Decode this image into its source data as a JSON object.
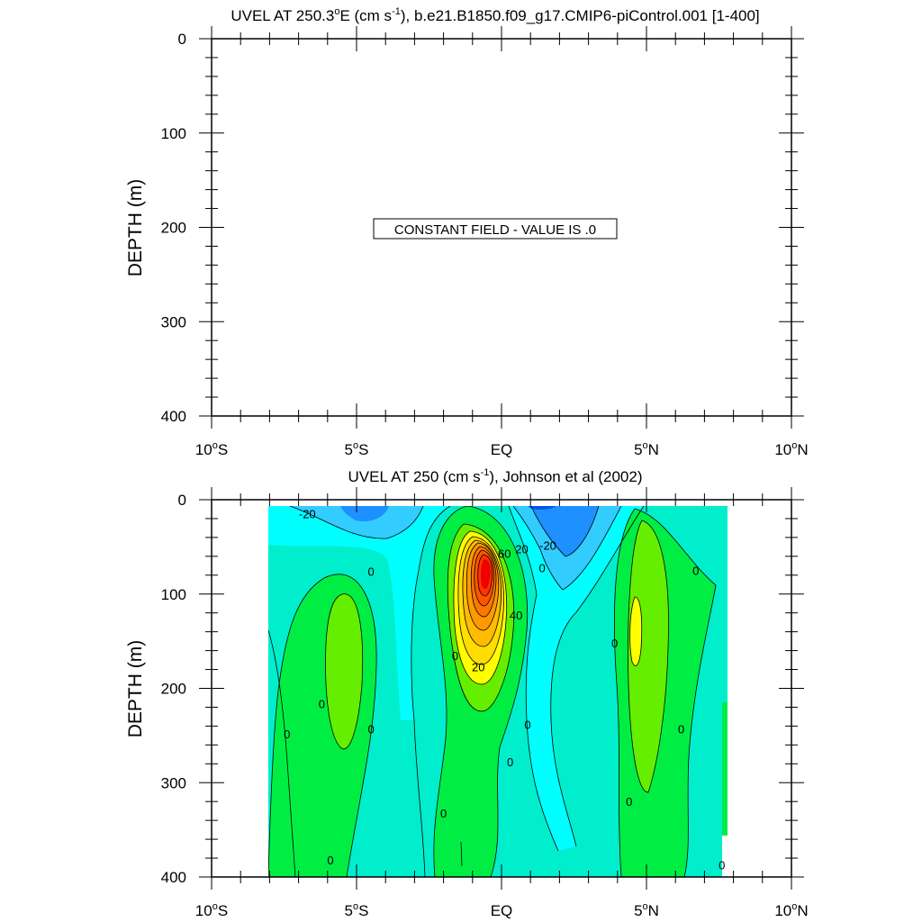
{
  "chart_data": [
    {
      "type": "contour",
      "title_main": "UVEL AT 250.3",
      "title_deg": "o",
      "title_unit_open": "E (cm s",
      "title_exp": "-1",
      "title_rest": "), b.e21.B1850.f09_g17.CMIP6-piControl.001 [1-400]",
      "ylabel": "DEPTH (m)",
      "xlim": [
        -10,
        10
      ],
      "ylim": [
        400,
        0
      ],
      "y_ticks": [
        "0",
        "100",
        "200",
        "300",
        "400"
      ],
      "x_ticks": [
        {
          "num": "10",
          "deg": "o",
          "hem": "S"
        },
        {
          "num": "5",
          "deg": "o",
          "hem": "S"
        },
        {
          "num": "EQ",
          "deg": "",
          "hem": ""
        },
        {
          "num": "5",
          "deg": "o",
          "hem": "N"
        },
        {
          "num": "10",
          "deg": "o",
          "hem": "N"
        }
      ],
      "notice": "CONSTANT FIELD - VALUE IS .0",
      "field_value": 0
    },
    {
      "type": "contour",
      "title_main": "UVEL AT 250 (cm s",
      "title_exp": "-1",
      "title_rest": "), Johnson et al (2002)",
      "ylabel": "DEPTH (m)",
      "xlim": [
        -10,
        10
      ],
      "ylim": [
        400,
        0
      ],
      "data_extent_lat": [
        -8,
        8.2
      ],
      "contour_interval": 10,
      "y_ticks": [
        "0",
        "100",
        "200",
        "300",
        "400"
      ],
      "x_ticks": [
        {
          "num": "10",
          "deg": "o",
          "hem": "S"
        },
        {
          "num": "5",
          "deg": "o",
          "hem": "S"
        },
        {
          "num": "EQ",
          "deg": "",
          "hem": ""
        },
        {
          "num": "5",
          "deg": "o",
          "hem": "N"
        },
        {
          "num": "10",
          "deg": "o",
          "hem": "N"
        }
      ],
      "features": [
        {
          "name": "equatorial-undercurrent-core",
          "lat": -0.2,
          "depth": 75,
          "value": 90
        },
        {
          "name": "south-subsurface-jet",
          "lat": -5.4,
          "depth": 170,
          "value": 10
        },
        {
          "name": "north-subsurface-jet",
          "lat": 5.0,
          "depth": 140,
          "value": 20
        },
        {
          "name": "surface-westward-flow-north",
          "lat": 2.3,
          "depth": 10,
          "value": -40
        },
        {
          "name": "surface-westward-flow-south",
          "lat": -5.8,
          "depth": 15,
          "value": -30
        }
      ],
      "contour_labels": [
        {
          "text": "-20",
          "lat": -6.7,
          "depth": 15
        },
        {
          "text": "-20",
          "lat": 1.6,
          "depth": 48
        },
        {
          "text": "60",
          "lat": 0.1,
          "depth": 57
        },
        {
          "text": "20",
          "lat": 0.7,
          "depth": 52
        },
        {
          "text": "0",
          "lat": 1.4,
          "depth": 72
        },
        {
          "text": "40",
          "lat": 0.5,
          "depth": 122
        },
        {
          "text": "20",
          "lat": -0.8,
          "depth": 177
        },
        {
          "text": "0",
          "lat": -1.6,
          "depth": 165
        },
        {
          "text": "0",
          "lat": -4.5,
          "depth": 76
        },
        {
          "text": "0",
          "lat": -6.2,
          "depth": 216
        },
        {
          "text": "0",
          "lat": -4.5,
          "depth": 243
        },
        {
          "text": "0",
          "lat": -7.4,
          "depth": 248
        },
        {
          "text": "0",
          "lat": 0.9,
          "depth": 238
        },
        {
          "text": "0",
          "lat": 0.3,
          "depth": 278
        },
        {
          "text": "0",
          "lat": -2.0,
          "depth": 332
        },
        {
          "text": "0",
          "lat": -5.9,
          "depth": 382
        },
        {
          "text": "0",
          "lat": 3.9,
          "depth": 152
        },
        {
          "text": "0",
          "lat": 6.7,
          "depth": 75
        },
        {
          "text": "0",
          "lat": 6.2,
          "depth": 243
        },
        {
          "text": "0",
          "lat": 4.4,
          "depth": 320
        },
        {
          "text": "0",
          "lat": 7.6,
          "depth": 387
        }
      ]
    }
  ]
}
